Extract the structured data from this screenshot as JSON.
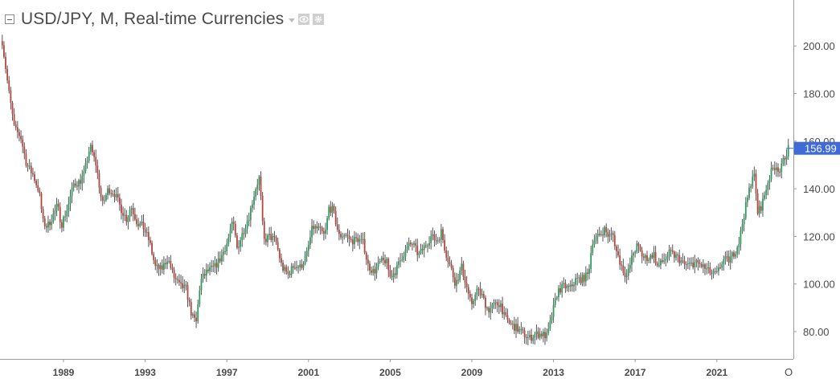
{
  "header": {
    "title": "USD/JPY, M, Real-time Currencies",
    "eye_icon": "eye-icon",
    "settings_icon": "gear-icon",
    "collapse_icon": "collapse-icon"
  },
  "corner_button": "O",
  "colors": {
    "up": "#2e9c5e",
    "down": "#b5463e",
    "wick": "#555555",
    "axis_line": "#9a9a9a",
    "last_price_bg": "#3f6ad8"
  },
  "chart_data": {
    "type": "candlestick",
    "symbol": "USD/JPY",
    "interval": "M",
    "source": "Real-time Currencies",
    "y_axis": {
      "ticks": [
        "200.00",
        "180.00",
        "160.00",
        "140.00",
        "120.00",
        "100.00",
        "80.00"
      ],
      "position": "right"
    },
    "x_axis": {
      "ticks": [
        "1989",
        "1993",
        "1997",
        "2001",
        "2005",
        "2009",
        "2013",
        "2017",
        "2021"
      ]
    },
    "last_price": "156.99",
    "grid": false,
    "close_path": [
      [
        1986.0,
        202
      ],
      [
        1986.3,
        182
      ],
      [
        1986.6,
        165
      ],
      [
        1986.9,
        162
      ],
      [
        1987.2,
        150
      ],
      [
        1987.5,
        146
      ],
      [
        1987.8,
        139
      ],
      [
        1988.0,
        126
      ],
      [
        1988.2,
        124
      ],
      [
        1988.5,
        129
      ],
      [
        1988.7,
        133
      ],
      [
        1988.9,
        125
      ],
      [
        1989.2,
        132
      ],
      [
        1989.5,
        142
      ],
      [
        1989.8,
        143
      ],
      [
        1990.0,
        146
      ],
      [
        1990.3,
        158
      ],
      [
        1990.6,
        150
      ],
      [
        1990.9,
        133
      ],
      [
        1991.2,
        140
      ],
      [
        1991.5,
        138
      ],
      [
        1991.8,
        132
      ],
      [
        1992.1,
        127
      ],
      [
        1992.3,
        133
      ],
      [
        1992.6,
        126
      ],
      [
        1992.9,
        124
      ],
      [
        1993.2,
        118
      ],
      [
        1993.5,
        107
      ],
      [
        1993.8,
        106
      ],
      [
        1994.1,
        111
      ],
      [
        1994.4,
        103
      ],
      [
        1994.7,
        99
      ],
      [
        1995.0,
        98
      ],
      [
        1995.3,
        86
      ],
      [
        1995.5,
        84
      ],
      [
        1995.7,
        101
      ],
      [
        1996.0,
        105
      ],
      [
        1996.4,
        107
      ],
      [
        1996.7,
        111
      ],
      [
        1997.0,
        117
      ],
      [
        1997.3,
        126
      ],
      [
        1997.5,
        115
      ],
      [
        1997.8,
        122
      ],
      [
        1998.1,
        129
      ],
      [
        1998.4,
        140
      ],
      [
        1998.6,
        145
      ],
      [
        1998.8,
        118
      ],
      [
        1999.1,
        120
      ],
      [
        1999.4,
        118
      ],
      [
        1999.7,
        107
      ],
      [
        2000.0,
        104
      ],
      [
        2000.3,
        108
      ],
      [
        2000.6,
        107
      ],
      [
        2000.9,
        112
      ],
      [
        2001.2,
        124
      ],
      [
        2001.5,
        123
      ],
      [
        2001.8,
        120
      ],
      [
        2002.0,
        132
      ],
      [
        2002.2,
        131
      ],
      [
        2002.5,
        120
      ],
      [
        2002.8,
        121
      ],
      [
        2003.1,
        118
      ],
      [
        2003.4,
        119
      ],
      [
        2003.7,
        117
      ],
      [
        2003.9,
        108
      ],
      [
        2004.2,
        105
      ],
      [
        2004.5,
        109
      ],
      [
        2004.8,
        110
      ],
      [
        2005.0,
        103
      ],
      [
        2005.3,
        106
      ],
      [
        2005.6,
        112
      ],
      [
        2005.9,
        116
      ],
      [
        2006.1,
        117
      ],
      [
        2006.4,
        112
      ],
      [
        2006.7,
        116
      ],
      [
        2007.0,
        120
      ],
      [
        2007.3,
        118
      ],
      [
        2007.5,
        122
      ],
      [
        2007.7,
        114
      ],
      [
        2008.0,
        106
      ],
      [
        2008.2,
        100
      ],
      [
        2008.5,
        107
      ],
      [
        2008.8,
        97
      ],
      [
        2009.0,
        90
      ],
      [
        2009.2,
        98
      ],
      [
        2009.5,
        95
      ],
      [
        2009.8,
        89
      ],
      [
        2010.1,
        91
      ],
      [
        2010.4,
        92
      ],
      [
        2010.6,
        86
      ],
      [
        2010.9,
        83
      ],
      [
        2011.1,
        82
      ],
      [
        2011.4,
        80
      ],
      [
        2011.8,
        77
      ],
      [
        2012.1,
        79
      ],
      [
        2012.4,
        79
      ],
      [
        2012.7,
        78
      ],
      [
        2012.9,
        86
      ],
      [
        2013.2,
        97
      ],
      [
        2013.5,
        99
      ],
      [
        2013.8,
        98
      ],
      [
        2014.1,
        102
      ],
      [
        2014.4,
        102
      ],
      [
        2014.7,
        104
      ],
      [
        2014.9,
        118
      ],
      [
        2015.2,
        120
      ],
      [
        2015.5,
        123
      ],
      [
        2015.7,
        120
      ],
      [
        2015.9,
        121
      ],
      [
        2016.1,
        113
      ],
      [
        2016.4,
        106
      ],
      [
        2016.6,
        103
      ],
      [
        2016.9,
        113
      ],
      [
        2017.1,
        116
      ],
      [
        2017.4,
        111
      ],
      [
        2017.7,
        111
      ],
      [
        2017.9,
        113
      ],
      [
        2018.1,
        107
      ],
      [
        2018.4,
        110
      ],
      [
        2018.7,
        113
      ],
      [
        2018.9,
        112
      ],
      [
        2019.1,
        111
      ],
      [
        2019.4,
        108
      ],
      [
        2019.7,
        108
      ],
      [
        2019.9,
        109
      ],
      [
        2020.2,
        108
      ],
      [
        2020.5,
        106
      ],
      [
        2020.8,
        104
      ],
      [
        2021.0,
        104
      ],
      [
        2021.3,
        110
      ],
      [
        2021.6,
        110
      ],
      [
        2021.9,
        114
      ],
      [
        2022.1,
        118
      ],
      [
        2022.3,
        128
      ],
      [
        2022.5,
        136
      ],
      [
        2022.8,
        148
      ],
      [
        2023.0,
        130
      ],
      [
        2023.2,
        133
      ],
      [
        2023.5,
        143
      ],
      [
        2023.7,
        148
      ],
      [
        2023.9,
        150
      ],
      [
        2024.1,
        147
      ],
      [
        2024.3,
        153
      ],
      [
        2024.5,
        157
      ]
    ]
  }
}
